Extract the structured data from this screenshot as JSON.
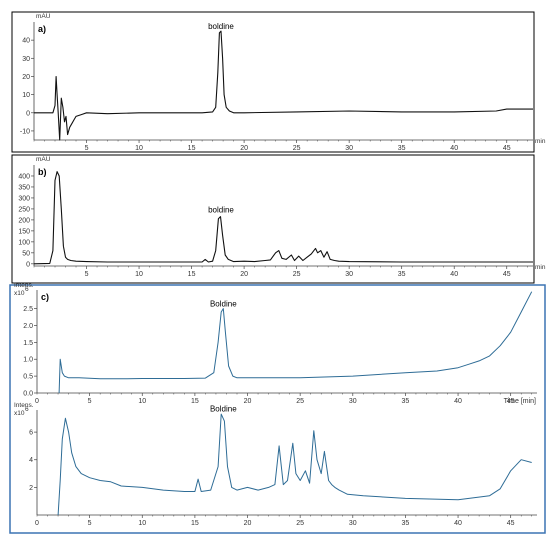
{
  "colors": {
    "hplc_trace": "#111111",
    "ms_trace": "#2e6c96",
    "frame": "#000000",
    "ms_box": "#3b73b3"
  },
  "chart_data": [
    {
      "type": "line",
      "panel_label": "a)",
      "y_unit": "mAU",
      "x_unit": "min",
      "xlim": [
        0,
        47.5
      ],
      "ylim": [
        -15,
        50
      ],
      "x_ticks": [
        5,
        10,
        15,
        20,
        25,
        30,
        35,
        40,
        45
      ],
      "y_ticks": [
        -10,
        0,
        10,
        20,
        30,
        40
      ],
      "annotations": [
        {
          "text": "boldine",
          "x": 17.8,
          "y": 44
        }
      ],
      "series": [
        {
          "x": [
            0,
            1.8,
            2.0,
            2.1,
            2.2,
            2.3,
            2.45,
            2.6,
            2.75,
            2.9,
            3.05,
            3.2,
            3.4,
            3.6,
            3.8,
            4.0,
            4.5,
            5,
            7,
            10,
            13,
            15,
            16,
            17.0,
            17.3,
            17.5,
            17.65,
            17.8,
            17.95,
            18.1,
            18.3,
            18.6,
            19,
            20,
            25,
            30,
            35,
            40,
            44,
            45,
            46,
            47.5
          ],
          "y": [
            0,
            0,
            4,
            20,
            10,
            0,
            -15,
            8,
            3,
            -5,
            -2,
            -12,
            -8,
            -6,
            -4,
            -2,
            -1,
            0,
            -0.5,
            0,
            0,
            0,
            0,
            0.5,
            3,
            22,
            44,
            45,
            30,
            10,
            3,
            1,
            0,
            0,
            0.5,
            1,
            0.5,
            0.5,
            1,
            2,
            2,
            2
          ]
        }
      ]
    },
    {
      "type": "line",
      "panel_label": "b)",
      "y_unit": "mAU",
      "x_unit": "min",
      "xlim": [
        0,
        47.5
      ],
      "ylim": [
        -10,
        450
      ],
      "x_ticks": [
        5,
        10,
        15,
        20,
        25,
        30,
        35,
        40,
        45
      ],
      "y_ticks": [
        0,
        50,
        100,
        150,
        200,
        250,
        300,
        350,
        400
      ],
      "annotations": [
        {
          "text": "boldine",
          "x": 17.8,
          "y": 215
        }
      ],
      "series": [
        {
          "x": [
            0,
            1.5,
            1.8,
            2.0,
            2.2,
            2.4,
            2.6,
            2.8,
            3.0,
            3.2,
            3.5,
            4,
            5,
            7,
            10,
            15,
            16,
            16.3,
            16.6,
            17.0,
            17.3,
            17.55,
            17.75,
            17.95,
            18.2,
            18.5,
            19,
            20,
            21,
            22,
            22.5,
            23,
            23.3,
            23.6,
            24,
            24.5,
            24.8,
            25.2,
            25.6,
            26,
            26.4,
            26.8,
            27.0,
            27.3,
            27.6,
            27.9,
            28.2,
            28.6,
            29,
            30,
            35,
            40,
            45,
            47.5
          ],
          "y": [
            0,
            2,
            60,
            380,
            420,
            400,
            250,
            80,
            30,
            20,
            15,
            12,
            10,
            8,
            8,
            8,
            8,
            20,
            8,
            12,
            60,
            205,
            215,
            130,
            40,
            20,
            10,
            12,
            10,
            15,
            18,
            50,
            60,
            25,
            20,
            40,
            15,
            35,
            15,
            30,
            45,
            70,
            50,
            60,
            30,
            55,
            20,
            15,
            12,
            10,
            8,
            8,
            8,
            8
          ]
        }
      ]
    },
    {
      "type": "line",
      "panel_label": "c)",
      "y_unit_line1": "Intens.",
      "y_unit_line2": "x10",
      "y_unit_exp": "6",
      "x_unit": "Time [min]",
      "xlim": [
        0,
        47.5
      ],
      "ylim": [
        0,
        3.05
      ],
      "x_ticks": [
        5,
        10,
        15,
        20,
        25,
        30,
        35,
        40,
        45
      ],
      "y_ticks": [
        0.0,
        0.5,
        1.0,
        1.5,
        2.0,
        2.5
      ],
      "annotations": [
        {
          "text": "Boldine",
          "x": 17.7,
          "y": 2.45
        }
      ],
      "series": [
        {
          "x": [
            2.1,
            2.2,
            2.4,
            2.6,
            3,
            4,
            6,
            8,
            10,
            12,
            14,
            16,
            16.8,
            17.2,
            17.5,
            17.7,
            17.9,
            18.2,
            18.6,
            19,
            20,
            25,
            30,
            35,
            38,
            40,
            41,
            42,
            43,
            44,
            45,
            46,
            47
          ],
          "y": [
            0.0,
            1.0,
            0.6,
            0.5,
            0.45,
            0.45,
            0.42,
            0.42,
            0.43,
            0.43,
            0.43,
            0.44,
            0.6,
            1.5,
            2.4,
            2.5,
            1.8,
            0.8,
            0.5,
            0.45,
            0.45,
            0.45,
            0.5,
            0.6,
            0.65,
            0.75,
            0.85,
            0.95,
            1.1,
            1.4,
            1.8,
            2.4,
            3.0
          ]
        }
      ]
    },
    {
      "type": "line",
      "y_unit_line1": "Intens.",
      "y_unit_line2": "x10",
      "y_unit_exp": "6",
      "x_unit": "",
      "xlim": [
        0,
        47.5
      ],
      "ylim": [
        0,
        7.6
      ],
      "x_ticks": [
        5,
        10,
        15,
        20,
        25,
        30,
        35,
        40,
        45
      ],
      "y_ticks": [
        2,
        4,
        6
      ],
      "annotations": [
        {
          "text": "Boldine",
          "x": 17.7,
          "y": 7.2
        }
      ],
      "series": [
        {
          "x": [
            2.0,
            2.2,
            2.4,
            2.7,
            3.0,
            3.3,
            3.7,
            4.2,
            5,
            6,
            7,
            8,
            10,
            12,
            14,
            15,
            15.3,
            15.6,
            16.5,
            17.2,
            17.5,
            17.8,
            18.1,
            18.5,
            19,
            20,
            21,
            22,
            22.6,
            23.0,
            23.4,
            23.8,
            24.3,
            24.6,
            25.0,
            25.5,
            25.9,
            26.3,
            26.6,
            27.0,
            27.3,
            27.7,
            28.0,
            28.3,
            28.7,
            29.5,
            31,
            35,
            40,
            43,
            44,
            45,
            46,
            47
          ],
          "y": [
            0,
            2.5,
            5.5,
            7.0,
            6.0,
            4.5,
            3.5,
            3.0,
            2.7,
            2.5,
            2.4,
            2.1,
            2.0,
            1.8,
            1.7,
            1.7,
            2.6,
            1.7,
            1.8,
            3.5,
            7.3,
            6.8,
            3.5,
            2.0,
            1.8,
            2.0,
            1.8,
            2.0,
            2.2,
            5.0,
            2.2,
            2.5,
            5.2,
            3.0,
            2.5,
            3.2,
            2.3,
            6.1,
            4.0,
            3.0,
            4.6,
            2.5,
            2.2,
            2.0,
            1.8,
            1.5,
            1.4,
            1.2,
            1.1,
            1.4,
            1.9,
            3.2,
            4.0,
            3.8
          ]
        }
      ]
    }
  ]
}
